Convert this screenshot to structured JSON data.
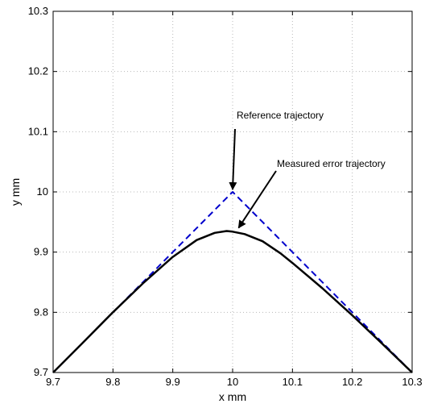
{
  "chart_data": {
    "type": "line",
    "xlabel": "x mm",
    "ylabel": "y mm",
    "xlim": [
      9.7,
      10.3
    ],
    "ylim": [
      9.7,
      10.3
    ],
    "xticks": [
      "9.7",
      "9.8",
      "9.9",
      "10",
      "10.1",
      "10.2",
      "10.3"
    ],
    "yticks": [
      "9.7",
      "9.8",
      "9.9",
      "10",
      "10.1",
      "10.2",
      "10.3"
    ],
    "grid": true,
    "series": [
      {
        "name": "Reference trajectory",
        "style": "dashed",
        "color": "#0000cc",
        "x": [
          9.7,
          10.0,
          10.3
        ],
        "y": [
          9.7,
          10.0,
          9.7
        ]
      },
      {
        "name": "Measured error trajectory",
        "style": "solid",
        "color": "#000000",
        "x": [
          9.7,
          9.75,
          9.8,
          9.85,
          9.9,
          9.94,
          9.97,
          9.99,
          10.0,
          10.02,
          10.05,
          10.08,
          10.1,
          10.15,
          10.2,
          10.25,
          10.3
        ],
        "y": [
          9.7,
          9.75,
          9.8,
          9.848,
          9.892,
          9.92,
          9.932,
          9.935,
          9.934,
          9.93,
          9.918,
          9.898,
          9.882,
          9.84,
          9.795,
          9.748,
          9.7
        ]
      }
    ],
    "annotations": [
      {
        "text": "Reference trajectory",
        "target": [
          10.0,
          10.0
        ]
      },
      {
        "text": "Measured error trajectory",
        "target": [
          10.01,
          9.935
        ]
      }
    ]
  }
}
